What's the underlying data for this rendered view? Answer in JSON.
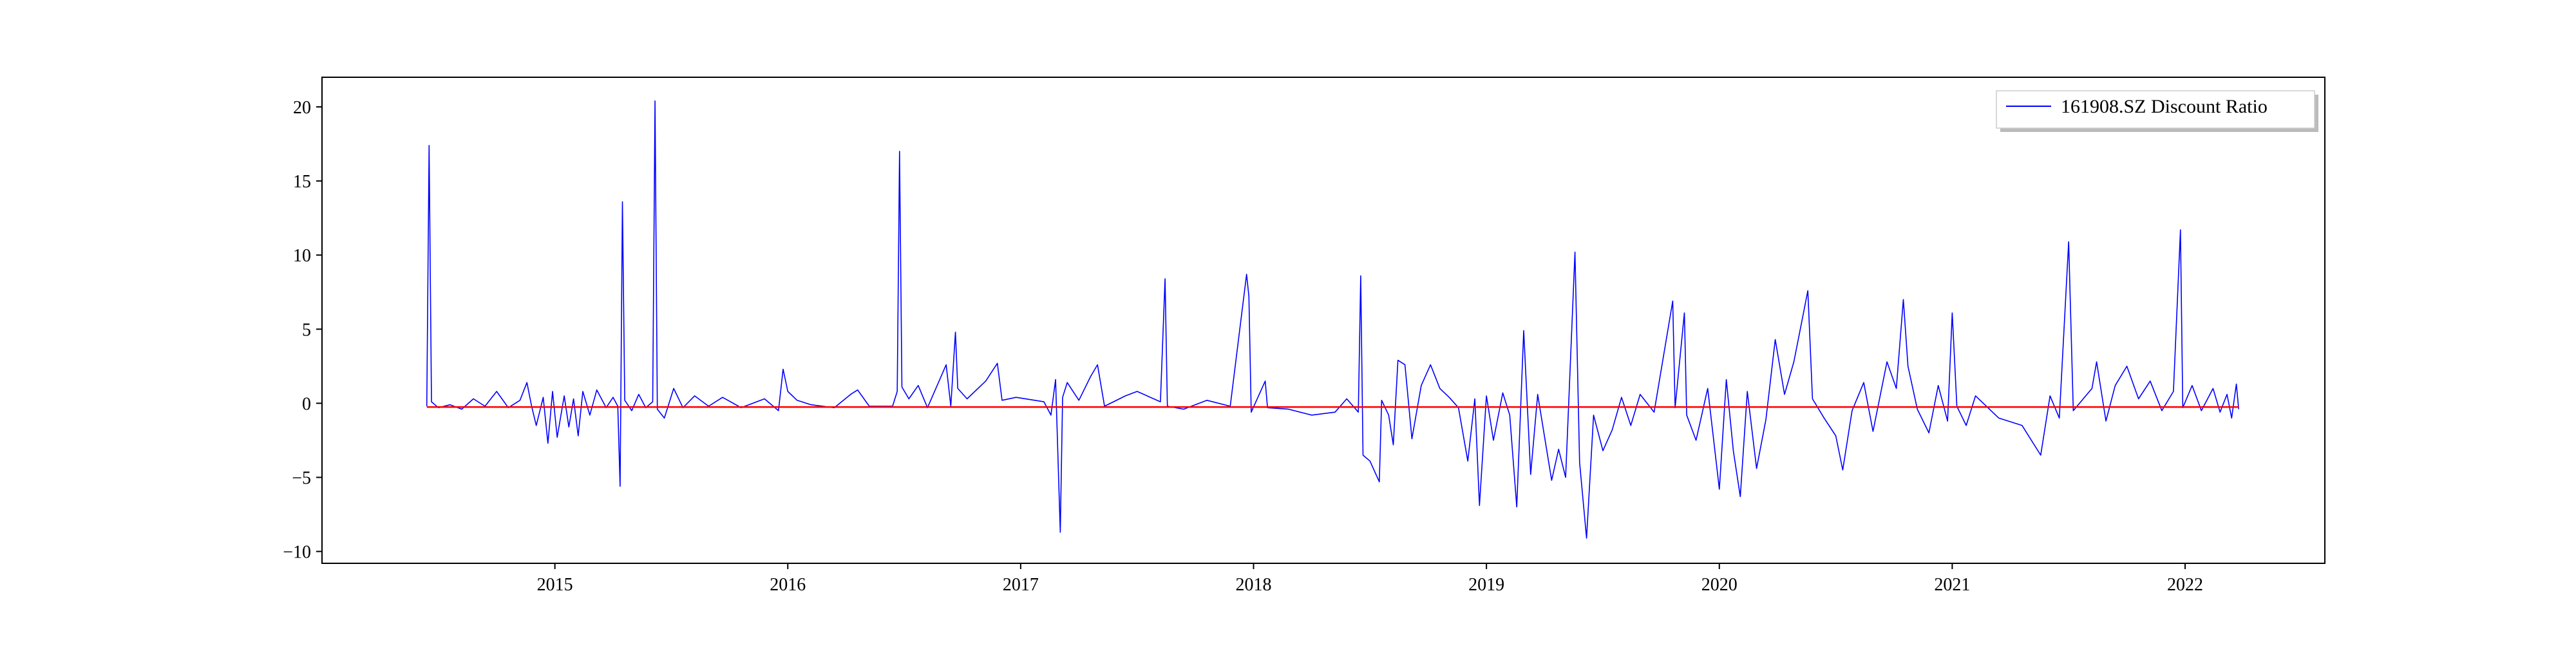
{
  "chart_data": {
    "type": "line",
    "title": "",
    "xlabel": "",
    "ylabel": "",
    "xlim": [
      2014.0,
      2022.6
    ],
    "ylim": [
      -10.8,
      22.0
    ],
    "x_ticks": [
      "2015",
      "2016",
      "2017",
      "2018",
      "2019",
      "2020",
      "2021",
      "2022"
    ],
    "y_ticks": [
      -10,
      -5,
      0,
      5,
      10,
      15,
      20
    ],
    "grid": false,
    "legend": {
      "position": "top-right",
      "entries": [
        "161908.SZ Discount Ratio"
      ]
    },
    "series": [
      {
        "name": "161908.SZ Discount Ratio",
        "color": "#0000ff",
        "points": [
          [
            2014.45,
            -0.2
          ],
          [
            2014.46,
            17.4
          ],
          [
            2014.47,
            0.1
          ],
          [
            2014.5,
            -0.3
          ],
          [
            2014.55,
            -0.1
          ],
          [
            2014.6,
            -0.4
          ],
          [
            2014.65,
            0.3
          ],
          [
            2014.7,
            -0.2
          ],
          [
            2014.75,
            0.8
          ],
          [
            2014.8,
            -0.3
          ],
          [
            2014.85,
            0.2
          ],
          [
            2014.88,
            1.4
          ],
          [
            2014.9,
            -0.2
          ],
          [
            2014.92,
            -1.5
          ],
          [
            2014.95,
            0.4
          ],
          [
            2014.97,
            -2.7
          ],
          [
            2014.99,
            0.8
          ],
          [
            2015.01,
            -2.3
          ],
          [
            2015.04,
            0.5
          ],
          [
            2015.06,
            -1.6
          ],
          [
            2015.08,
            0.3
          ],
          [
            2015.1,
            -2.2
          ],
          [
            2015.12,
            0.8
          ],
          [
            2015.15,
            -0.8
          ],
          [
            2015.18,
            0.9
          ],
          [
            2015.22,
            -0.3
          ],
          [
            2015.25,
            0.4
          ],
          [
            2015.27,
            -0.2
          ],
          [
            2015.28,
            -5.6
          ],
          [
            2015.29,
            13.6
          ],
          [
            2015.3,
            0.2
          ],
          [
            2015.33,
            -0.5
          ],
          [
            2015.36,
            0.6
          ],
          [
            2015.39,
            -0.3
          ],
          [
            2015.42,
            0.1
          ],
          [
            2015.43,
            20.4
          ],
          [
            2015.44,
            -0.4
          ],
          [
            2015.47,
            -1.0
          ],
          [
            2015.51,
            1.0
          ],
          [
            2015.55,
            -0.3
          ],
          [
            2015.6,
            0.5
          ],
          [
            2015.66,
            -0.2
          ],
          [
            2015.72,
            0.4
          ],
          [
            2015.8,
            -0.3
          ],
          [
            2015.9,
            0.3
          ],
          [
            2015.96,
            -0.5
          ],
          [
            2015.98,
            2.3
          ],
          [
            2016.0,
            0.8
          ],
          [
            2016.04,
            0.2
          ],
          [
            2016.1,
            -0.1
          ],
          [
            2016.2,
            -0.3
          ],
          [
            2016.27,
            0.6
          ],
          [
            2016.3,
            0.9
          ],
          [
            2016.35,
            -0.2
          ],
          [
            2016.45,
            -0.2
          ],
          [
            2016.47,
            0.8
          ],
          [
            2016.48,
            17.0
          ],
          [
            2016.49,
            1.1
          ],
          [
            2016.52,
            0.3
          ],
          [
            2016.56,
            1.2
          ],
          [
            2016.6,
            -0.3
          ],
          [
            2016.68,
            2.6
          ],
          [
            2016.7,
            -0.2
          ],
          [
            2016.72,
            4.8
          ],
          [
            2016.73,
            1.0
          ],
          [
            2016.77,
            0.3
          ],
          [
            2016.85,
            1.5
          ],
          [
            2016.9,
            2.7
          ],
          [
            2016.92,
            0.2
          ],
          [
            2016.98,
            0.4
          ],
          [
            2017.1,
            0.1
          ],
          [
            2017.13,
            -0.8
          ],
          [
            2017.15,
            1.6
          ],
          [
            2017.17,
            -8.7
          ],
          [
            2017.18,
            0.4
          ],
          [
            2017.2,
            1.4
          ],
          [
            2017.25,
            0.2
          ],
          [
            2017.3,
            1.8
          ],
          [
            2017.33,
            2.6
          ],
          [
            2017.36,
            -0.2
          ],
          [
            2017.45,
            0.5
          ],
          [
            2017.5,
            0.8
          ],
          [
            2017.6,
            0.1
          ],
          [
            2017.62,
            8.4
          ],
          [
            2017.63,
            -0.2
          ],
          [
            2017.7,
            -0.4
          ],
          [
            2017.8,
            0.2
          ],
          [
            2017.9,
            -0.2
          ],
          [
            2017.97,
            8.7
          ],
          [
            2017.98,
            7.2
          ],
          [
            2017.99,
            -0.6
          ],
          [
            2018.05,
            1.5
          ],
          [
            2018.06,
            -0.3
          ],
          [
            2018.15,
            -0.4
          ],
          [
            2018.25,
            -0.8
          ],
          [
            2018.35,
            -0.6
          ],
          [
            2018.4,
            0.3
          ],
          [
            2018.45,
            -0.6
          ],
          [
            2018.46,
            8.6
          ],
          [
            2018.47,
            -3.5
          ],
          [
            2018.5,
            -3.9
          ],
          [
            2018.54,
            -5.3
          ],
          [
            2018.55,
            0.2
          ],
          [
            2018.58,
            -0.8
          ],
          [
            2018.6,
            -2.8
          ],
          [
            2018.62,
            2.9
          ],
          [
            2018.65,
            2.6
          ],
          [
            2018.68,
            -2.4
          ],
          [
            2018.72,
            1.2
          ],
          [
            2018.76,
            2.6
          ],
          [
            2018.8,
            1.0
          ],
          [
            2018.84,
            0.4
          ],
          [
            2018.88,
            -0.3
          ],
          [
            2018.92,
            -3.9
          ],
          [
            2018.95,
            0.3
          ],
          [
            2018.97,
            -6.9
          ],
          [
            2019.0,
            0.5
          ],
          [
            2019.03,
            -2.5
          ],
          [
            2019.07,
            0.7
          ],
          [
            2019.1,
            -0.8
          ],
          [
            2019.13,
            -7.0
          ],
          [
            2019.16,
            4.9
          ],
          [
            2019.19,
            -4.8
          ],
          [
            2019.22,
            0.6
          ],
          [
            2019.25,
            -2.3
          ],
          [
            2019.28,
            -5.2
          ],
          [
            2019.31,
            -3.1
          ],
          [
            2019.34,
            -5.0
          ],
          [
            2019.38,
            10.2
          ],
          [
            2019.4,
            -4.0
          ],
          [
            2019.43,
            -9.1
          ],
          [
            2019.46,
            -0.8
          ],
          [
            2019.5,
            -3.2
          ],
          [
            2019.54,
            -1.8
          ],
          [
            2019.58,
            0.4
          ],
          [
            2019.62,
            -1.5
          ],
          [
            2019.66,
            0.6
          ],
          [
            2019.72,
            -0.6
          ],
          [
            2019.8,
            6.9
          ],
          [
            2019.81,
            -0.3
          ],
          [
            2019.85,
            6.1
          ],
          [
            2019.86,
            -0.8
          ],
          [
            2019.9,
            -2.5
          ],
          [
            2019.95,
            1.0
          ],
          [
            2020.0,
            -5.8
          ],
          [
            2020.03,
            1.6
          ],
          [
            2020.06,
            -3.2
          ],
          [
            2020.09,
            -6.3
          ],
          [
            2020.12,
            0.8
          ],
          [
            2020.16,
            -4.4
          ],
          [
            2020.2,
            -1.1
          ],
          [
            2020.24,
            4.3
          ],
          [
            2020.28,
            0.6
          ],
          [
            2020.32,
            2.8
          ],
          [
            2020.36,
            6.0
          ],
          [
            2020.38,
            7.6
          ],
          [
            2020.4,
            0.3
          ],
          [
            2020.45,
            -1.0
          ],
          [
            2020.5,
            -2.2
          ],
          [
            2020.53,
            -4.5
          ],
          [
            2020.57,
            -0.5
          ],
          [
            2020.62,
            1.4
          ],
          [
            2020.66,
            -1.9
          ],
          [
            2020.72,
            2.8
          ],
          [
            2020.76,
            1.0
          ],
          [
            2020.79,
            7.0
          ],
          [
            2020.81,
            2.5
          ],
          [
            2020.85,
            -0.4
          ],
          [
            2020.9,
            -2.0
          ],
          [
            2020.94,
            1.2
          ],
          [
            2020.98,
            -1.2
          ],
          [
            2021.0,
            6.1
          ],
          [
            2021.02,
            -0.2
          ],
          [
            2021.06,
            -1.5
          ],
          [
            2021.1,
            0.5
          ],
          [
            2021.2,
            -1.0
          ],
          [
            2021.3,
            -1.5
          ],
          [
            2021.38,
            -3.5
          ],
          [
            2021.42,
            0.5
          ],
          [
            2021.46,
            -1.0
          ],
          [
            2021.5,
            10.9
          ],
          [
            2021.52,
            -0.5
          ],
          [
            2021.6,
            1.0
          ],
          [
            2021.62,
            2.8
          ],
          [
            2021.66,
            -1.2
          ],
          [
            2021.7,
            1.2
          ],
          [
            2021.75,
            2.5
          ],
          [
            2021.8,
            0.3
          ],
          [
            2021.85,
            1.5
          ],
          [
            2021.9,
            -0.5
          ],
          [
            2021.95,
            0.8
          ],
          [
            2021.98,
            11.7
          ],
          [
            2021.99,
            -0.3
          ],
          [
            2022.03,
            1.2
          ],
          [
            2022.07,
            -0.5
          ],
          [
            2022.12,
            1.0
          ],
          [
            2022.15,
            -0.6
          ],
          [
            2022.18,
            0.6
          ],
          [
            2022.2,
            -1.0
          ],
          [
            2022.22,
            1.3
          ],
          [
            2022.23,
            -0.4
          ]
        ]
      },
      {
        "name": "",
        "color": "#ff0000",
        "points": [
          [
            2014.45,
            -0.25
          ],
          [
            2022.23,
            -0.25
          ]
        ]
      }
    ]
  }
}
